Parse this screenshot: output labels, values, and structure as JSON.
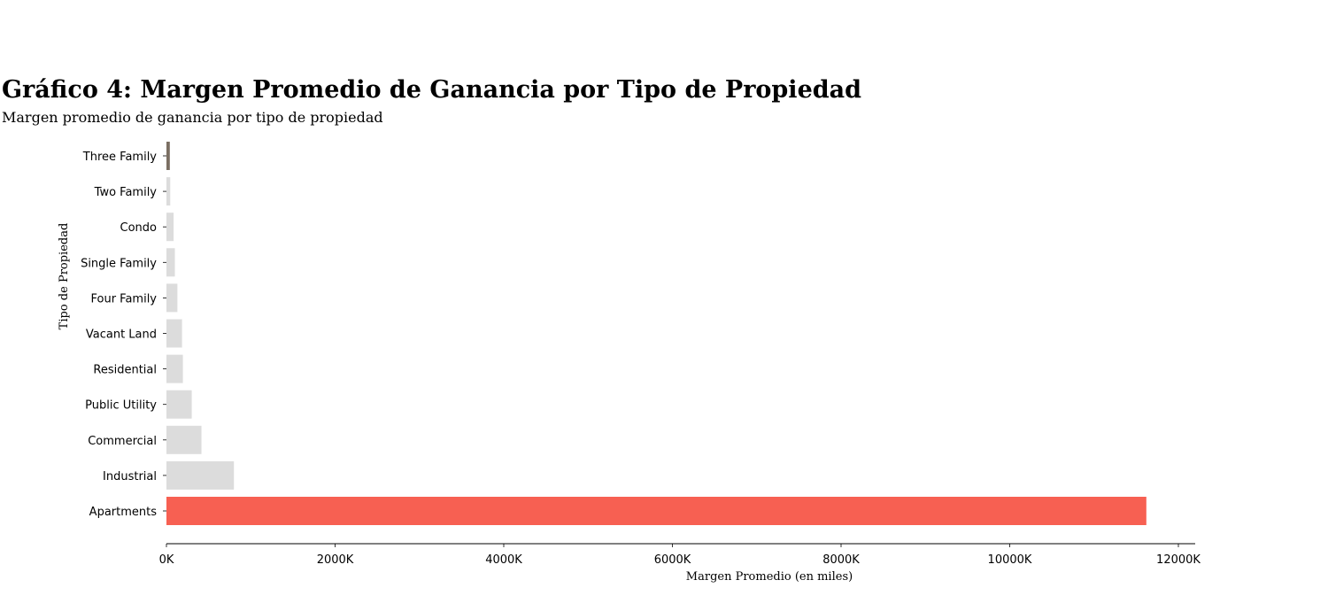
{
  "chart_data": {
    "type": "bar",
    "orientation": "horizontal",
    "title": "Gráfico 4: Margen Promedio de Ganancia por Tipo de Propiedad",
    "subtitle": "Margen promedio de ganancia por tipo de propiedad",
    "xlabel": "Margen Promedio (en miles)",
    "ylabel": "Tipo de Propiedad",
    "xlim": [
      0,
      12200
    ],
    "x_ticks": [
      0,
      2000,
      4000,
      6000,
      8000,
      10000,
      12000
    ],
    "x_tick_labels": [
      "0K",
      "2000K",
      "4000K",
      "6000K",
      "8000K",
      "10000K",
      "12000K"
    ],
    "categories": [
      "Three Family",
      "Two Family",
      "Condo",
      "Single Family",
      "Four Family",
      "Vacant Land",
      "Residential",
      "Public Utility",
      "Commercial",
      "Industrial",
      "Apartments"
    ],
    "values": [
      40,
      45,
      85,
      100,
      130,
      185,
      195,
      300,
      415,
      800,
      11620
    ],
    "colors": [
      "#7a6e62",
      "#dcdcdc",
      "#dcdcdc",
      "#dcdcdc",
      "#dcdcdc",
      "#dcdcdc",
      "#dcdcdc",
      "#dcdcdc",
      "#dcdcdc",
      "#dcdcdc",
      "#f76052"
    ],
    "grid": false,
    "legend": false
  }
}
